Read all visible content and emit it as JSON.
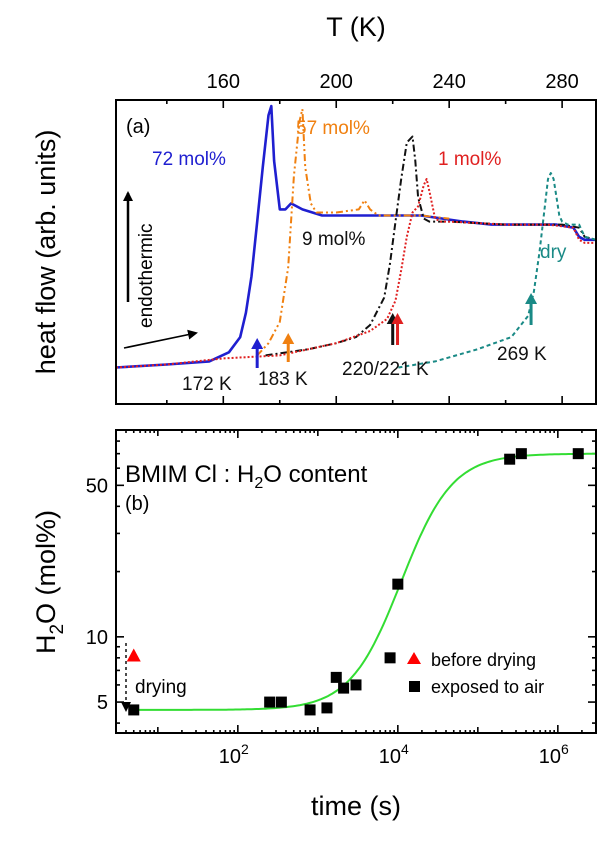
{
  "chart_data": [
    {
      "type": "line",
      "panel_label": "(a)",
      "xlabel_top": "T (K)",
      "ylabel": "heat flow (arb. units)",
      "xlim": [
        122,
        292
      ],
      "x_ticks": [
        160,
        200,
        240,
        280
      ],
      "ylim": [
        0,
        1
      ],
      "y_ticks_shown": false,
      "endothermic_label": "endothermic",
      "series": [
        {
          "name": "72 mol%",
          "color": "#1f1fd0",
          "style": "solid",
          "x": [
            122,
            140,
            155,
            162,
            166,
            168,
            170,
            172,
            174,
            176,
            177,
            178,
            180,
            182,
            184,
            188,
            195,
            210,
            230,
            245,
            255,
            270,
            278,
            284,
            286,
            288,
            292
          ],
          "y": [
            0.12,
            0.13,
            0.14,
            0.17,
            0.22,
            0.3,
            0.42,
            0.6,
            0.78,
            0.95,
            0.98,
            0.8,
            0.64,
            0.64,
            0.66,
            0.64,
            0.62,
            0.62,
            0.62,
            0.6,
            0.59,
            0.59,
            0.59,
            0.58,
            0.55,
            0.54,
            0.54
          ]
        },
        {
          "name": "57 mol%",
          "color": "#f08010",
          "style": "dashdotdot",
          "x": [
            172,
            176,
            180,
            183,
            185,
            187,
            188,
            189,
            191,
            193,
            200,
            208,
            210,
            212,
            215,
            230,
            240
          ],
          "y": [
            0.16,
            0.2,
            0.27,
            0.45,
            0.75,
            0.93,
            0.97,
            0.78,
            0.66,
            0.63,
            0.63,
            0.64,
            0.67,
            0.64,
            0.62,
            0.62,
            0.61
          ]
        },
        {
          "name": "9 mol%",
          "color": "#111111",
          "style": "dashdot",
          "x": [
            175,
            190,
            200,
            207,
            212,
            217,
            219,
            221,
            223,
            225,
            227,
            228,
            229,
            231,
            233,
            240,
            260,
            270,
            280,
            286,
            288,
            292
          ],
          "y": [
            0.16,
            0.18,
            0.2,
            0.22,
            0.26,
            0.35,
            0.46,
            0.6,
            0.74,
            0.86,
            0.88,
            0.8,
            0.68,
            0.61,
            0.6,
            0.6,
            0.59,
            0.59,
            0.59,
            0.58,
            0.55,
            0.54
          ]
        },
        {
          "name": "1 mol%",
          "color": "#e02020",
          "style": "dotted",
          "x": [
            122,
            140,
            160,
            180,
            200,
            212,
            218,
            221,
            223,
            225,
            227,
            229,
            231,
            232,
            233,
            235,
            237,
            240,
            260,
            275,
            284,
            286,
            288,
            292
          ],
          "y": [
            0.12,
            0.13,
            0.15,
            0.16,
            0.2,
            0.24,
            0.28,
            0.34,
            0.44,
            0.55,
            0.63,
            0.65,
            0.72,
            0.74,
            0.7,
            0.61,
            0.6,
            0.6,
            0.59,
            0.59,
            0.58,
            0.54,
            0.53,
            0.53
          ]
        },
        {
          "name": "dry",
          "color": "#1a8a86",
          "style": "dashed",
          "x": [
            222,
            235,
            250,
            262,
            268,
            270,
            272,
            274,
            275,
            276,
            277,
            278,
            279,
            280,
            282,
            286,
            288,
            292
          ],
          "y": [
            0.12,
            0.14,
            0.18,
            0.22,
            0.29,
            0.37,
            0.5,
            0.66,
            0.74,
            0.76,
            0.74,
            0.68,
            0.62,
            0.6,
            0.59,
            0.59,
            0.55,
            0.54
          ]
        }
      ],
      "annotations": [
        {
          "text": "72 mol%",
          "color": "#1f1fd0"
        },
        {
          "text": "57 mol%",
          "color": "#f08010"
        },
        {
          "text": "1 mol%",
          "color": "#e02020"
        },
        {
          "text": "9 mol%",
          "color": "#111111"
        },
        {
          "text": "dry",
          "color": "#1a8a86"
        },
        {
          "text": "172 K",
          "color": "#111111"
        },
        {
          "text": "183 K",
          "color": "#111111"
        },
        {
          "text": "220/221 K",
          "color": "#111111"
        },
        {
          "text": "269 K",
          "color": "#111111"
        }
      ],
      "transition_arrows": [
        {
          "x": 172,
          "color": "#1f1fd0"
        },
        {
          "x": 183,
          "color": "#f08010"
        },
        {
          "x": 220,
          "color": "#111111"
        },
        {
          "x": 221,
          "color": "#e02020"
        },
        {
          "x": 269,
          "color": "#1a8a86"
        }
      ]
    },
    {
      "type": "scatter",
      "panel_label": "(b)",
      "title": "BMIM Cl : H2O content",
      "title_main": "BMIM Cl : H",
      "title_sub": "2",
      "title_tail": "O content",
      "xlabel": "time (s)",
      "ylabel_main": "H",
      "ylabel_sub": "2",
      "ylabel_tail": "O (mol%)",
      "xscale": "log",
      "yscale": "log",
      "xlim": [
        3,
        3000000
      ],
      "ylim": [
        3.6,
        90
      ],
      "x_ticks": [
        {
          "value": 100,
          "base": "10",
          "exp": "2"
        },
        {
          "value": 10000,
          "base": "10",
          "exp": "4"
        },
        {
          "value": 1000000,
          "base": "10",
          "exp": "6"
        }
      ],
      "y_ticks": [
        {
          "value": 5,
          "label": "5"
        },
        {
          "value": 10,
          "label": "10"
        },
        {
          "value": 50,
          "label": "50"
        }
      ],
      "legend": [
        {
          "label": "before drying",
          "marker": "triangle",
          "color": "#ff0000"
        },
        {
          "label": "exposed to air",
          "marker": "square",
          "color": "#000000"
        }
      ],
      "drying_label": "drying",
      "before_drying": {
        "x": [
          5
        ],
        "y": [
          8.2
        ]
      },
      "exposed_to_air": {
        "x": [
          5,
          250,
          350,
          800,
          1300,
          1700,
          2100,
          3000,
          8000,
          10000,
          250000,
          350000,
          1800000
        ],
        "y": [
          4.6,
          5.0,
          5.0,
          4.6,
          4.7,
          6.5,
          5.8,
          6.0,
          8.0,
          17.5,
          66,
          70,
          70
        ]
      },
      "fit": {
        "color": "#33dd33",
        "lower": 4.6,
        "upper": 70,
        "center": 11000,
        "width_decades": 0.32
      }
    }
  ]
}
